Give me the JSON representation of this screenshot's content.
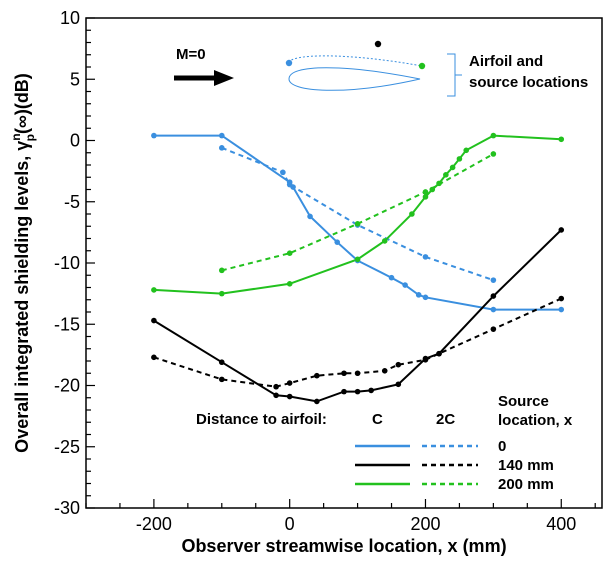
{
  "chart_data": {
    "type": "line",
    "title": "",
    "xlabel": "Observer streamwise location, x (mm)",
    "ylabel": "Overall integrated shielding levels, γ",
    "ylabel_sup": "n",
    "ylabel_sub": "p",
    "ylabel_tail": "(∞)(dB)",
    "xlim": [
      -300,
      460
    ],
    "ylim": [
      -30,
      10
    ],
    "xticks": [
      -200,
      0,
      200,
      400
    ],
    "xtick_labels": [
      "-200",
      "0",
      "200",
      "400"
    ],
    "yticks": [
      -30,
      -25,
      -20,
      -15,
      -10,
      -5,
      0,
      5,
      10
    ],
    "ytick_labels": [
      "-30",
      "-25",
      "-20",
      "-15",
      "-10",
      "-5",
      "0",
      "5",
      "10"
    ],
    "series": [
      {
        "name": "0",
        "distance": "C",
        "color": "#3a8fdf",
        "dash": false,
        "x": [
          -200,
          -100,
          0,
          5,
          30,
          70,
          100,
          150,
          170,
          190,
          200,
          300,
          400
        ],
        "y": [
          0.4,
          0.4,
          -3.4,
          -3.8,
          -6.2,
          -8.3,
          -9.8,
          -11.2,
          -11.8,
          -12.6,
          -12.8,
          -13.8,
          -13.8
        ]
      },
      {
        "name": "0",
        "distance": "2C",
        "color": "#3a8fdf",
        "dash": true,
        "x": [
          -100,
          -10,
          0,
          100,
          200,
          300
        ],
        "y": [
          -0.6,
          -2.6,
          -3.6,
          -6.9,
          -9.5,
          -11.4
        ]
      },
      {
        "name": "140 mm",
        "distance": "C",
        "color": "#000000",
        "dash": false,
        "x": [
          -200,
          -100,
          -20,
          0,
          40,
          80,
          100,
          120,
          160,
          200,
          220,
          300,
          400
        ],
        "y": [
          -14.7,
          -18.1,
          -20.8,
          -20.9,
          -21.3,
          -20.5,
          -20.5,
          -20.4,
          -19.9,
          -17.8,
          -17.4,
          -12.7,
          -7.3
        ]
      },
      {
        "name": "140 mm",
        "distance": "2C",
        "color": "#000000",
        "dash": true,
        "x": [
          -200,
          -100,
          -20,
          0,
          40,
          80,
          100,
          140,
          160,
          200,
          220,
          300,
          400
        ],
        "y": [
          -17.7,
          -19.5,
          -20.1,
          -19.8,
          -19.2,
          -19.0,
          -19.0,
          -18.8,
          -18.3,
          -17.9,
          -17.4,
          -15.4,
          -12.9
        ]
      },
      {
        "name": "200 mm",
        "distance": "C",
        "color": "#22c11e",
        "dash": false,
        "x": [
          -200,
          -100,
          0,
          100,
          140,
          180,
          200,
          210,
          220,
          230,
          240,
          250,
          260,
          300,
          400
        ],
        "y": [
          -12.2,
          -12.5,
          -11.7,
          -9.7,
          -8.2,
          -6.0,
          -4.6,
          -4.0,
          -3.5,
          -2.8,
          -2.2,
          -1.5,
          -0.8,
          0.4,
          0.1
        ]
      },
      {
        "name": "200 mm",
        "distance": "2C",
        "color": "#22c11e",
        "dash": true,
        "x": [
          -100,
          0,
          100,
          200,
          300
        ],
        "y": [
          -10.6,
          -9.2,
          -6.8,
          -4.2,
          -1.1
        ]
      }
    ],
    "legend": {
      "placement": "bottom-right",
      "heading": "Distance to airfoil:",
      "col_c": "C",
      "col_2c": "2C",
      "source_title_1": "Source",
      "source_title_2": "location, x",
      "rows": [
        {
          "label": "0",
          "color": "#3a8fdf"
        },
        {
          "label": "140 mm",
          "color": "#000000"
        },
        {
          "label": "200 mm",
          "color": "#22c11e"
        }
      ]
    },
    "annotations": {
      "mach": "M=0",
      "airfoil_line1": "Airfoil and",
      "airfoil_line2": "source locations"
    }
  }
}
